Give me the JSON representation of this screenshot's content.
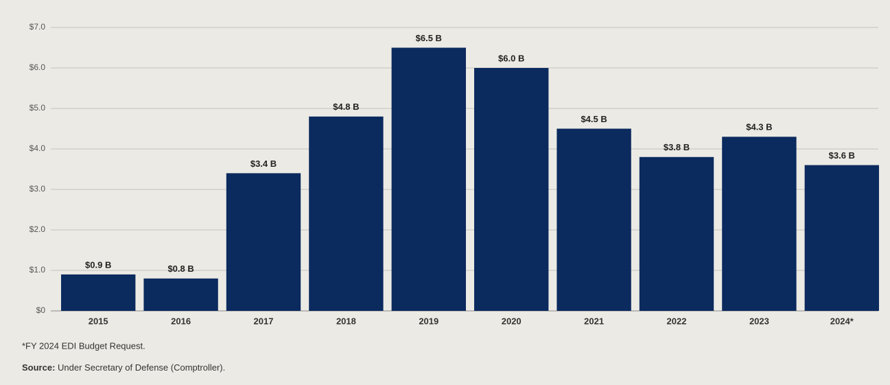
{
  "chart_data": {
    "type": "bar",
    "categories": [
      "2015",
      "2016",
      "2017",
      "2018",
      "2019",
      "2020",
      "2021",
      "2022",
      "2023",
      "2024*"
    ],
    "values": [
      0.9,
      0.8,
      3.4,
      4.8,
      6.5,
      6.0,
      4.5,
      3.8,
      4.3,
      3.6
    ],
    "value_labels": [
      "$0.9 B",
      "$0.8 B",
      "$3.4 B",
      "$4.8 B",
      "$6.5 B",
      "$6.0 B",
      "$4.5 B",
      "$3.8 B",
      "$4.3 B",
      "$3.6 B"
    ],
    "color": "#0b2a5e",
    "ylim": [
      0,
      7
    ],
    "yticks": [
      {
        "value": 0,
        "label": "$0"
      },
      {
        "value": 1,
        "label": "$1.0"
      },
      {
        "value": 2,
        "label": "$2.0"
      },
      {
        "value": 3,
        "label": "$3.0"
      },
      {
        "value": 4,
        "label": "$4.0"
      },
      {
        "value": 5,
        "label": "$5.0"
      },
      {
        "value": 6,
        "label": "$6.0"
      },
      {
        "value": 7,
        "label": "$7.0"
      }
    ],
    "grid": true,
    "footnote": "*FY 2024 EDI Budget Request.",
    "source_label": "Source:",
    "source_text": "Under Secretary of Defense (Comptroller)."
  }
}
